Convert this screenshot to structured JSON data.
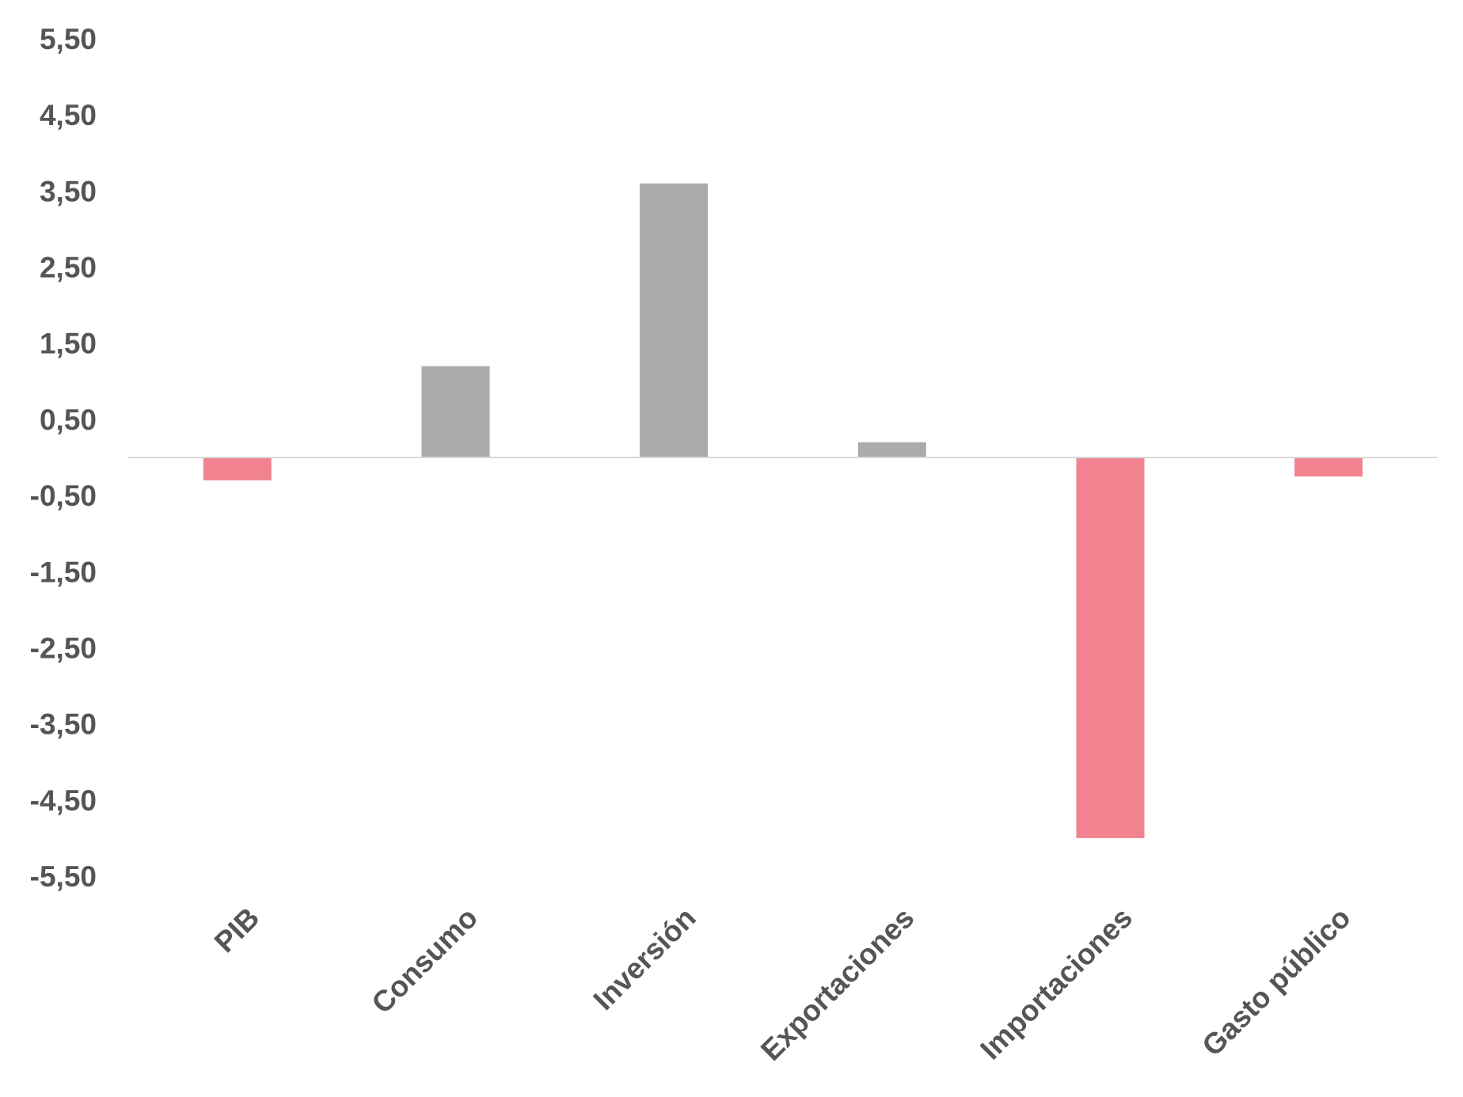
{
  "chart_data": {
    "type": "bar",
    "title": "",
    "xlabel": "",
    "ylabel": "",
    "categories": [
      "PIB",
      "Consumo",
      "Inversión",
      "Exportaciones",
      "Importaciones",
      "Gasto público"
    ],
    "values": [
      -0.3,
      1.2,
      3.6,
      0.2,
      -5.0,
      -0.25
    ],
    "ylim": [
      -5.5,
      5.5
    ],
    "yticks": [
      "5,50",
      "4,50",
      "3,50",
      "2,50",
      "1,50",
      "0,50",
      "-0,50",
      "-1,50",
      "-2,50",
      "-3,50",
      "-4,50",
      "-5,50"
    ],
    "ytick_values": [
      5.5,
      4.5,
      3.5,
      2.5,
      1.5,
      0.5,
      -0.5,
      -1.5,
      -2.5,
      -3.5,
      -4.5,
      -5.5
    ],
    "grid": false,
    "legend": "none",
    "colors": {
      "positive": "#ababab",
      "negative": "#f0838f",
      "zero_line": "#d9d9d9",
      "text": "#555555"
    }
  }
}
